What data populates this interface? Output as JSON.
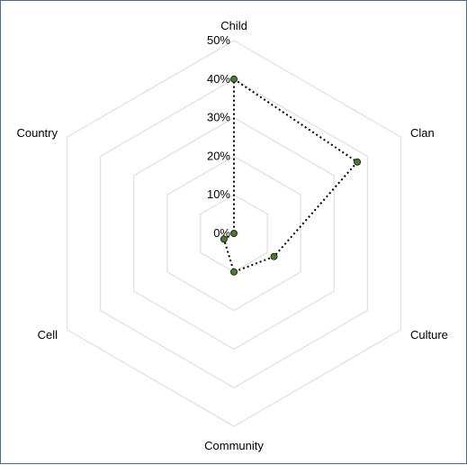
{
  "chart_data": {
    "type": "radar",
    "categories": [
      "Child",
      "Clan",
      "Culture",
      "Community",
      "Cell",
      "Country"
    ],
    "series": [
      {
        "values": [
          40,
          37,
          12,
          10,
          3,
          0
        ],
        "color": "#4e7b2f",
        "line_color": "#000000",
        "line_style": "dotted"
      }
    ],
    "rlim": [
      0,
      50
    ],
    "ticks": [
      0,
      10,
      20,
      30,
      40,
      50
    ],
    "tick_labels": [
      "0%",
      "10%",
      "20%",
      "30%",
      "40%",
      "50%"
    ],
    "grid": true,
    "legend": "none"
  }
}
